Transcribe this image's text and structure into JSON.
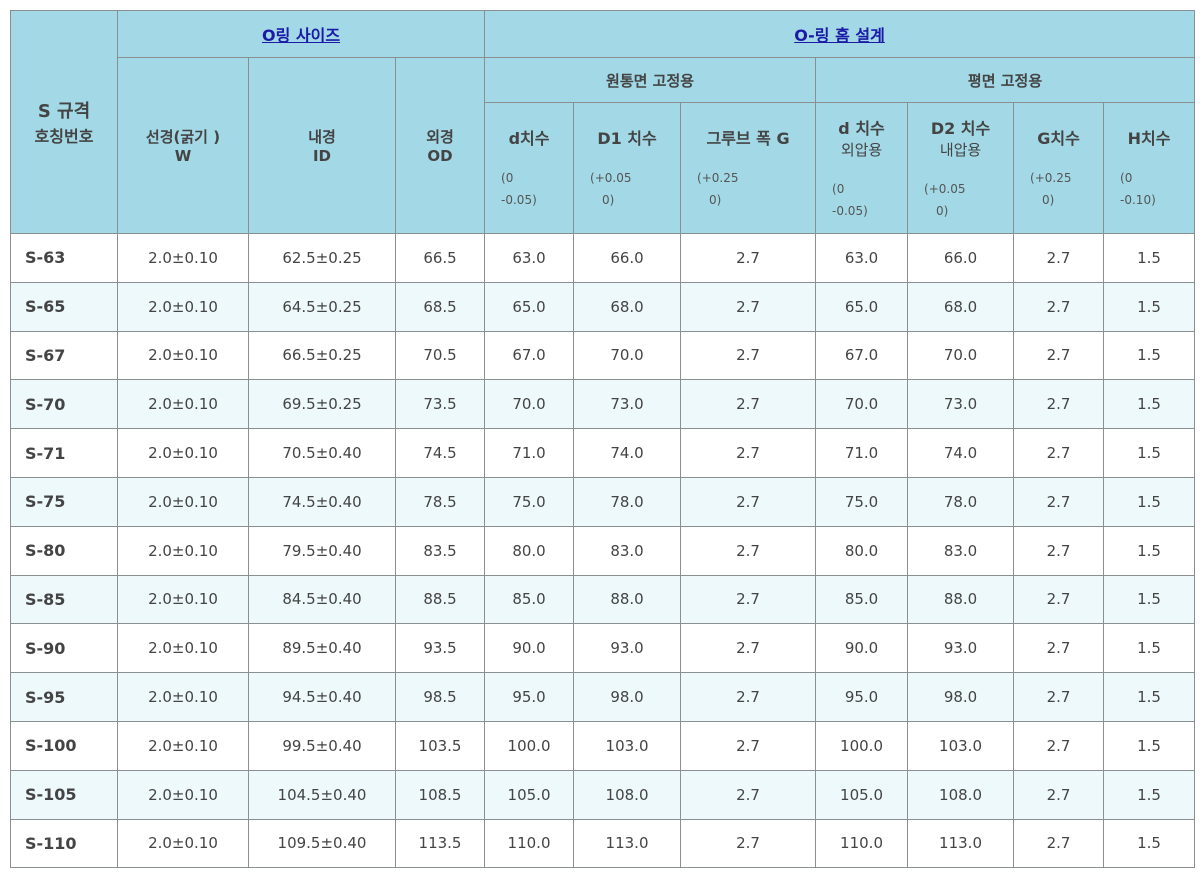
{
  "header": {
    "code_col": [
      "S 규격",
      "호칭번호"
    ],
    "oring_size": "O링 사이즈",
    "groove_design": "O-링 홈 설계",
    "cylinder": "원통면 고정용",
    "flat": "평면 고정용",
    "w": [
      "선경(굵기 )",
      "W"
    ],
    "id": [
      "내경",
      "ID"
    ],
    "od": [
      "외경",
      "OD"
    ],
    "d1": {
      "label": "d치수",
      "tol": [
        "(0",
        "-0.05)"
      ]
    },
    "D1": {
      "label": "D1 치수",
      "tol": [
        "(+0.05",
        "0)"
      ]
    },
    "groove": {
      "label": "그루브 폭 G",
      "tol": [
        "(+0.25",
        "0)"
      ]
    },
    "d2": {
      "label": "d 치수",
      "sub": "외압용",
      "tol": [
        "(0",
        "-0.05)"
      ]
    },
    "D2": {
      "label": "D2 치수",
      "sub": "내압용",
      "tol": [
        "(+0.05",
        "0)"
      ]
    },
    "G": {
      "label": "G치수",
      "tol": [
        "(+0.25",
        "0)"
      ]
    },
    "H": {
      "label": "H치수",
      "tol": [
        "(0",
        "-0.10)"
      ]
    }
  },
  "colors": {
    "header_bg": "#a3d9e6",
    "alt_row": "#eef9fc",
    "link": "#1a1aa6"
  },
  "rows": [
    [
      "S-63",
      "2.0±0.10",
      "62.5±0.25",
      "66.5",
      "63.0",
      "66.0",
      "2.7",
      "63.0",
      "66.0",
      "2.7",
      "1.5"
    ],
    [
      "S-65",
      "2.0±0.10",
      "64.5±0.25",
      "68.5",
      "65.0",
      "68.0",
      "2.7",
      "65.0",
      "68.0",
      "2.7",
      "1.5"
    ],
    [
      "S-67",
      "2.0±0.10",
      "66.5±0.25",
      "70.5",
      "67.0",
      "70.0",
      "2.7",
      "67.0",
      "70.0",
      "2.7",
      "1.5"
    ],
    [
      "S-70",
      "2.0±0.10",
      "69.5±0.25",
      "73.5",
      "70.0",
      "73.0",
      "2.7",
      "70.0",
      "73.0",
      "2.7",
      "1.5"
    ],
    [
      "S-71",
      "2.0±0.10",
      "70.5±0.40",
      "74.5",
      "71.0",
      "74.0",
      "2.7",
      "71.0",
      "74.0",
      "2.7",
      "1.5"
    ],
    [
      "S-75",
      "2.0±0.10",
      "74.5±0.40",
      "78.5",
      "75.0",
      "78.0",
      "2.7",
      "75.0",
      "78.0",
      "2.7",
      "1.5"
    ],
    [
      "S-80",
      "2.0±0.10",
      "79.5±0.40",
      "83.5",
      "80.0",
      "83.0",
      "2.7",
      "80.0",
      "83.0",
      "2.7",
      "1.5"
    ],
    [
      "S-85",
      "2.0±0.10",
      "84.5±0.40",
      "88.5",
      "85.0",
      "88.0",
      "2.7",
      "85.0",
      "88.0",
      "2.7",
      "1.5"
    ],
    [
      "S-90",
      "2.0±0.10",
      "89.5±0.40",
      "93.5",
      "90.0",
      "93.0",
      "2.7",
      "90.0",
      "93.0",
      "2.7",
      "1.5"
    ],
    [
      "S-95",
      "2.0±0.10",
      "94.5±0.40",
      "98.5",
      "95.0",
      "98.0",
      "2.7",
      "95.0",
      "98.0",
      "2.7",
      "1.5"
    ],
    [
      "S-100",
      "2.0±0.10",
      "99.5±0.40",
      "103.5",
      "100.0",
      "103.0",
      "2.7",
      "100.0",
      "103.0",
      "2.7",
      "1.5"
    ],
    [
      "S-105",
      "2.0±0.10",
      "104.5±0.40",
      "108.5",
      "105.0",
      "108.0",
      "2.7",
      "105.0",
      "108.0",
      "2.7",
      "1.5"
    ],
    [
      "S-110",
      "2.0±0.10",
      "109.5±0.40",
      "113.5",
      "110.0",
      "113.0",
      "2.7",
      "110.0",
      "113.0",
      "2.7",
      "1.5"
    ]
  ]
}
